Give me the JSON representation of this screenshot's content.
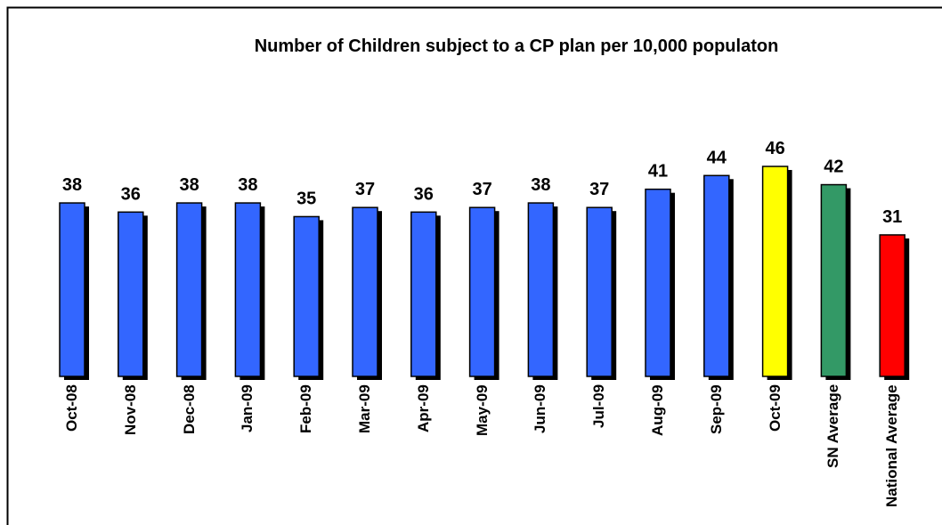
{
  "chart_data": {
    "type": "bar",
    "title": "Number of Children subject to a CP plan per 10,000 populaton",
    "categories": [
      "Oct-08",
      "Nov-08",
      "Dec-08",
      "Jan-09",
      "Feb-09",
      "Mar-09",
      "Apr-09",
      "May-09",
      "Jun-09",
      "Jul-09",
      "Aug-09",
      "Sep-09",
      "Oct-09",
      "SN Average",
      "National Average"
    ],
    "values": [
      38,
      36,
      38,
      38,
      35,
      37,
      36,
      37,
      38,
      37,
      41,
      44,
      46,
      42,
      31
    ],
    "colors": [
      "#3366ff",
      "#3366ff",
      "#3366ff",
      "#3366ff",
      "#3366ff",
      "#3366ff",
      "#3366ff",
      "#3366ff",
      "#3366ff",
      "#3366ff",
      "#3366ff",
      "#3366ff",
      "#ffff00",
      "#339966",
      "#ff0000"
    ]
  }
}
